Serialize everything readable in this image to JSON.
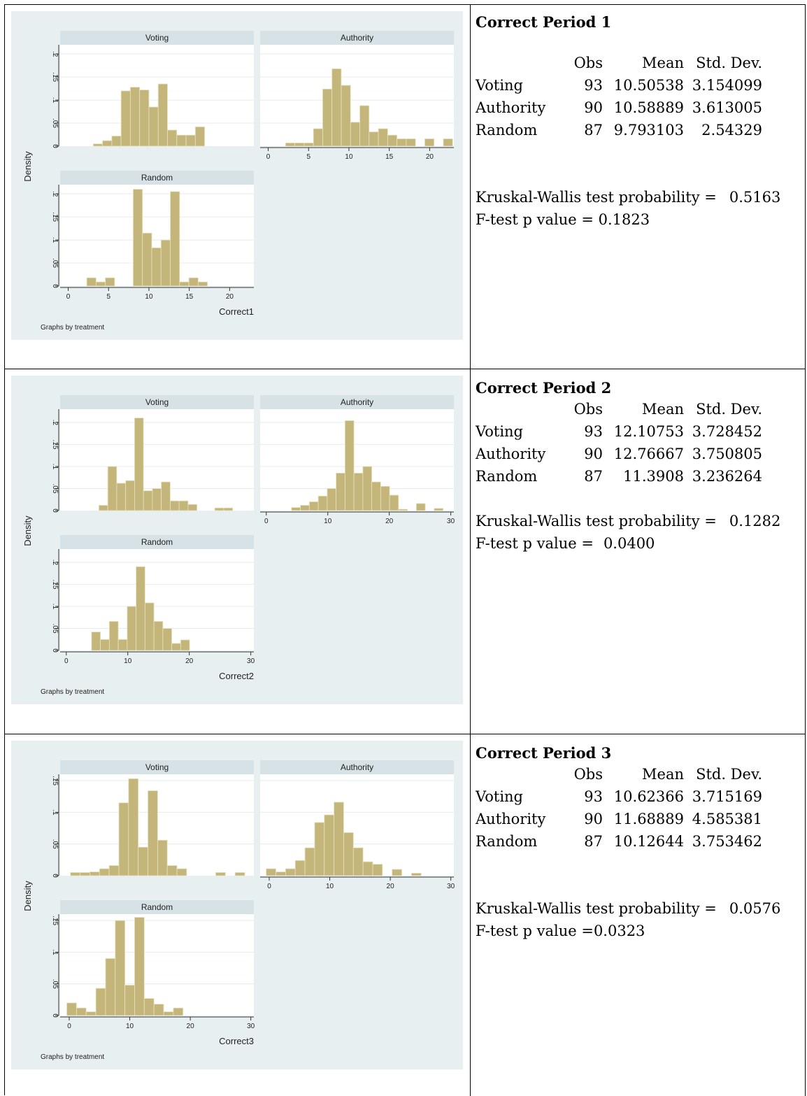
{
  "panels": [
    {
      "title": "Correct Period 1",
      "stats_header": [
        "Obs",
        "Mean",
        "Std. Dev."
      ],
      "stats_rows": [
        {
          "label": "Voting",
          "obs": "93",
          "mean": "10.50538",
          "sd": "3.154099"
        },
        {
          "label": "Authority",
          "obs": "90",
          "mean": "10.58889",
          "sd": "3.613005"
        },
        {
          "label": "Random",
          "obs": "87",
          "mean": "9.793103",
          "sd": "2.54329"
        }
      ],
      "kw_label": "Kruskal-Wallis test probability =",
      "kw_value": "0.5163",
      "f_label": "F-test p value =",
      "f_value": "0.1823"
    },
    {
      "title": "Correct Period 2",
      "stats_header": [
        "Obs",
        "Mean",
        "Std. Dev."
      ],
      "stats_rows": [
        {
          "label": "Voting",
          "obs": "93",
          "mean": "12.10753",
          "sd": "3.728452"
        },
        {
          "label": "Authority",
          "obs": "90",
          "mean": "12.76667",
          "sd": "3.750805"
        },
        {
          "label": "Random",
          "obs": "87",
          "mean": "11.3908",
          "sd": "3.236264"
        }
      ],
      "kw_label": "Kruskal-Wallis test probability =",
      "kw_value": "0.1282",
      "f_label": "F-test p value =",
      "f_value": "0.0400"
    },
    {
      "title": "Correct Period 3",
      "stats_header": [
        "Obs",
        "Mean",
        "Std. Dev."
      ],
      "stats_rows": [
        {
          "label": "Voting",
          "obs": "93",
          "mean": "10.62366",
          "sd": "3.715169"
        },
        {
          "label": "Authority",
          "obs": "90",
          "mean": "11.68889",
          "sd": "4.585381"
        },
        {
          "label": "Random",
          "obs": "87",
          "mean": "10.12644",
          "sd": "3.753462"
        }
      ],
      "kw_label": "Kruskal-Wallis test probability =",
      "kw_value": "0.0576",
      "f_label": "F-test p value =",
      "f_value": "0.0323"
    }
  ],
  "colors": {
    "graph_background": "#e8eff1",
    "plot_background": "#ffffff",
    "strip_background": "#d6e2e6",
    "bar_fill": "#c4b67a",
    "bar_stroke": "#e8e2c0",
    "grid": "#e6ecee"
  },
  "chart_data": [
    {
      "type": "bar",
      "xlabel": "Correct1",
      "ylabel": "Density",
      "note": "Graphs by treatment",
      "xlim": [
        -1,
        23
      ],
      "xticks": [
        0,
        5,
        10,
        15,
        20
      ],
      "ylim": [
        0,
        0.22
      ],
      "yticks": [
        0,
        0.05,
        0.1,
        0.15,
        0.2
      ],
      "ytick_labels": [
        "0",
        ".05",
        ".1",
        ".15",
        ".2"
      ],
      "grid": true,
      "bin_width": 1.15,
      "series": [
        {
          "name": "Voting",
          "start": 3.1,
          "values": [
            0.005,
            0.012,
            0.022,
            0.12,
            0.128,
            0.122,
            0.085,
            0.135,
            0.035,
            0.024,
            0.024,
            0.042
          ]
        },
        {
          "name": "Authority",
          "start": 1.0,
          "values": [
            0,
            0.007,
            0.007,
            0.007,
            0.038,
            0.124,
            0.168,
            0.132,
            0.052,
            0.088,
            0.031,
            0.038,
            0.024,
            0.016,
            0.016,
            0,
            0.016,
            0,
            0.016
          ]
        },
        {
          "name": "Random",
          "start": 2.3,
          "values": [
            0.018,
            0.009,
            0.018,
            0,
            0,
            0.21,
            0.115,
            0.083,
            0.1,
            0.205,
            0.009,
            0.018,
            0.009
          ]
        }
      ]
    },
    {
      "type": "bar",
      "xlabel": "Correct2",
      "ylabel": "Density",
      "note": "Graphs by treatment",
      "xlim": [
        -1,
        30.5
      ],
      "xticks": [
        0,
        10,
        20,
        30
      ],
      "ylim": [
        0,
        0.23
      ],
      "yticks": [
        0,
        0.05,
        0.1,
        0.15,
        0.2
      ],
      "ytick_labels": [
        "0",
        ".05",
        ".1",
        ".15",
        ".2"
      ],
      "grid": true,
      "bin_width": 1.45,
      "series": [
        {
          "name": "Voting",
          "start": 5.3,
          "values": [
            0.012,
            0.1,
            0.062,
            0.068,
            0.21,
            0.045,
            0.05,
            0.065,
            0.022,
            0.022,
            0.014,
            0,
            0,
            0.006,
            0.006
          ]
        },
        {
          "name": "Authority",
          "start": 4.1,
          "values": [
            0.007,
            0.012,
            0.02,
            0.033,
            0.05,
            0.085,
            0.204,
            0.085,
            0.1,
            0.065,
            0.055,
            0.035,
            0.003,
            0,
            0.016,
            0,
            0.005
          ]
        },
        {
          "name": "Random",
          "start": 4.1,
          "values": [
            0.042,
            0.025,
            0.066,
            0.025,
            0.1,
            0.19,
            0.108,
            0.066,
            0.05,
            0.016,
            0.024
          ]
        }
      ]
    },
    {
      "type": "bar",
      "xlabel": "Correct3",
      "ylabel": "Density",
      "note": "Graphs by treatment",
      "xlim": [
        -1.5,
        30.5
      ],
      "xticks": [
        0,
        10,
        20,
        30
      ],
      "ylim": [
        0,
        0.16
      ],
      "yticks": [
        0,
        0.05,
        0.1,
        0.15
      ],
      "ytick_labels": [
        "0",
        ".05",
        ".1",
        ".15"
      ],
      "grid": true,
      "bin_width": 1.6,
      "series": [
        {
          "name": "Voting",
          "start": 0.2,
          "values": [
            0.005,
            0.005,
            0.006,
            0.011,
            0.016,
            0.115,
            0.153,
            0.045,
            0.134,
            0.056,
            0.016,
            0.011,
            0,
            0,
            0,
            0.005,
            0,
            0.005
          ]
        },
        {
          "name": "Authority",
          "start": -0.5,
          "values": [
            0.011,
            0.006,
            0.011,
            0.024,
            0.044,
            0.084,
            0.096,
            0.116,
            0.068,
            0.044,
            0.022,
            0.018,
            0,
            0.01,
            0,
            0.004
          ]
        },
        {
          "name": "Random",
          "start": -0.4,
          "values": [
            0.02,
            0.012,
            0.006,
            0.043,
            0.09,
            0.15,
            0.048,
            0.155,
            0.027,
            0.018,
            0.006,
            0.012
          ]
        }
      ]
    }
  ]
}
